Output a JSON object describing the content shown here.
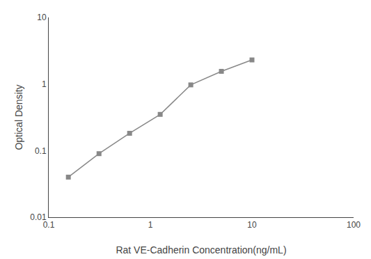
{
  "chart_data": {
    "type": "line",
    "x": [
      0.156,
      0.3125,
      0.625,
      1.25,
      2.5,
      5.0,
      10.0
    ],
    "values": [
      0.04,
      0.09,
      0.182,
      0.35,
      0.97,
      1.55,
      2.3
    ],
    "xlabel": "Rat VE-Cadherin Concentration(ng/mL)",
    "ylabel": "Optical Density",
    "log": true,
    "xlim": [
      0.1,
      100
    ],
    "ylim": [
      0.01,
      10
    ],
    "xticks": [
      0.1,
      1,
      10,
      100
    ],
    "yticks": [
      0.01,
      0.1,
      1,
      10
    ],
    "color": "#888888",
    "marker": "square",
    "grid": false
  }
}
